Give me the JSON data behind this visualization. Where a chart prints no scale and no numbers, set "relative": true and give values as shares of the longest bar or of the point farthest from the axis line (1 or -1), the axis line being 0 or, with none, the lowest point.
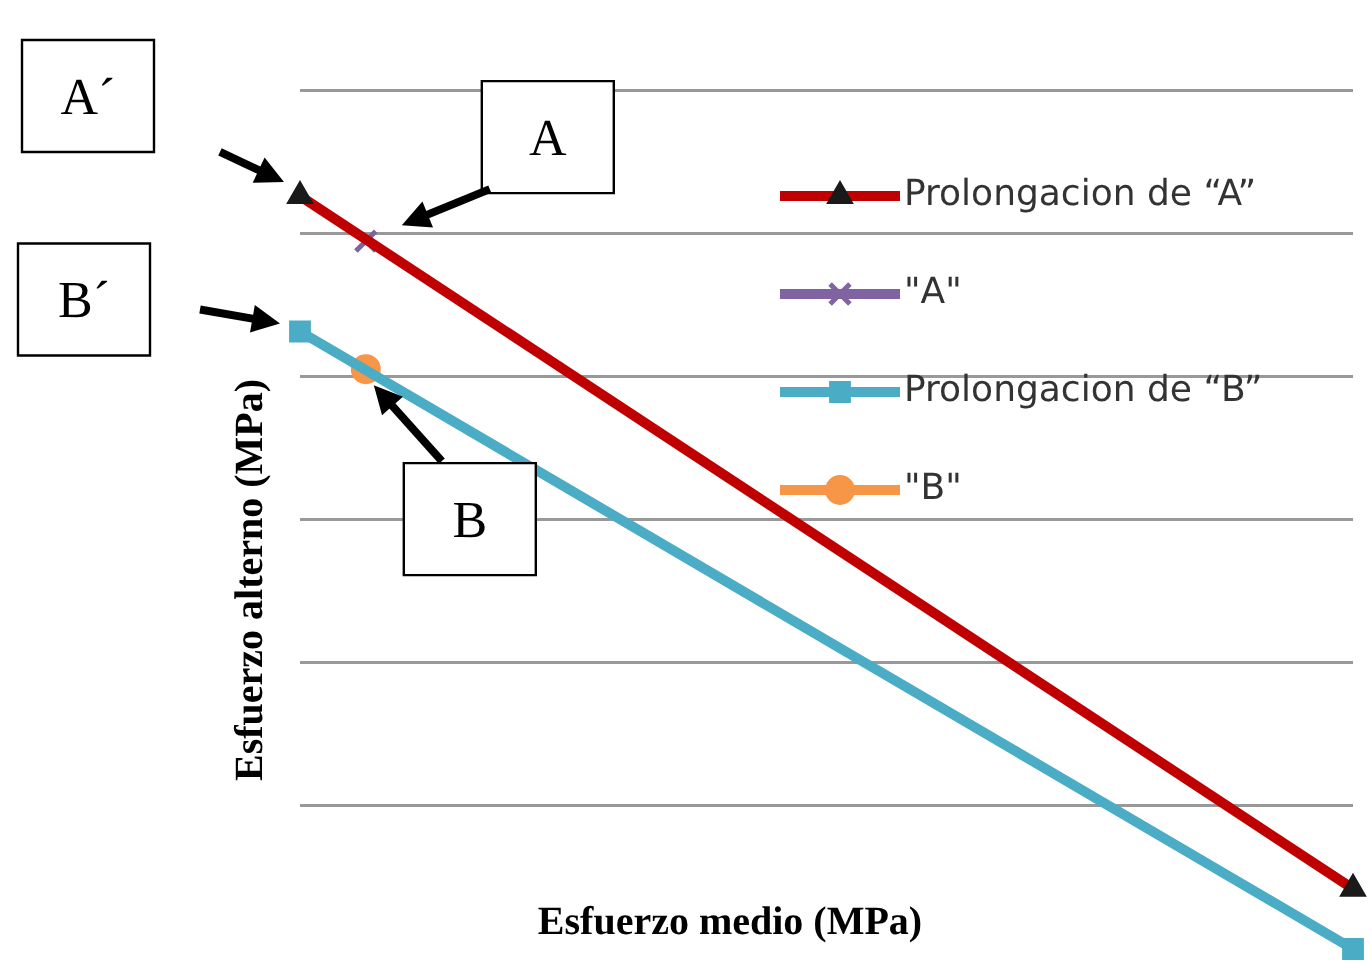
{
  "chart_data": {
    "type": "line",
    "relative": true,
    "xlabel": "Esfuerzo medio (MPa)",
    "ylabel": "Esfuerzo alterno (MPa)",
    "grid": "y",
    "legend": "top right",
    "categories": [
      null,
      null,
      null,
      null,
      null,
      null,
      null,
      null,
      null,
      null,
      null,
      null,
      null,
      null,
      null,
      null,
      null
    ],
    "series": [
      {
        "name": "Prolongacion de “A”",
        "color": "#c00000",
        "marker": "triangle",
        "values": [
          1,
          null,
          null,
          null,
          null,
          null,
          null,
          null,
          null,
          null,
          null,
          null,
          null,
          null,
          null,
          null,
          0.08
        ]
      },
      {
        "name": "\"A\"",
        "color": "#8064a2",
        "marker": "cross",
        "values": [
          null,
          0.94,
          null,
          null,
          null,
          null,
          null,
          null,
          null,
          null,
          null,
          null,
          null,
          null,
          null,
          null,
          null
        ]
      },
      {
        "name": "Prolongacion de “B”",
        "color": "#4bacc6",
        "marker": "square",
        "values": [
          0.82,
          null,
          null,
          null,
          null,
          null,
          null,
          null,
          null,
          null,
          null,
          null,
          null,
          null,
          null,
          null,
          0
        ]
      },
      {
        "name": "\"B\"",
        "color": "#f79646",
        "marker": "circle",
        "values": [
          null,
          0.77,
          null,
          null,
          null,
          null,
          null,
          null,
          null,
          null,
          null,
          null,
          null,
          null,
          null,
          null,
          null
        ]
      }
    ],
    "annotations": [
      "A´",
      "A",
      "B´",
      "B"
    ]
  }
}
